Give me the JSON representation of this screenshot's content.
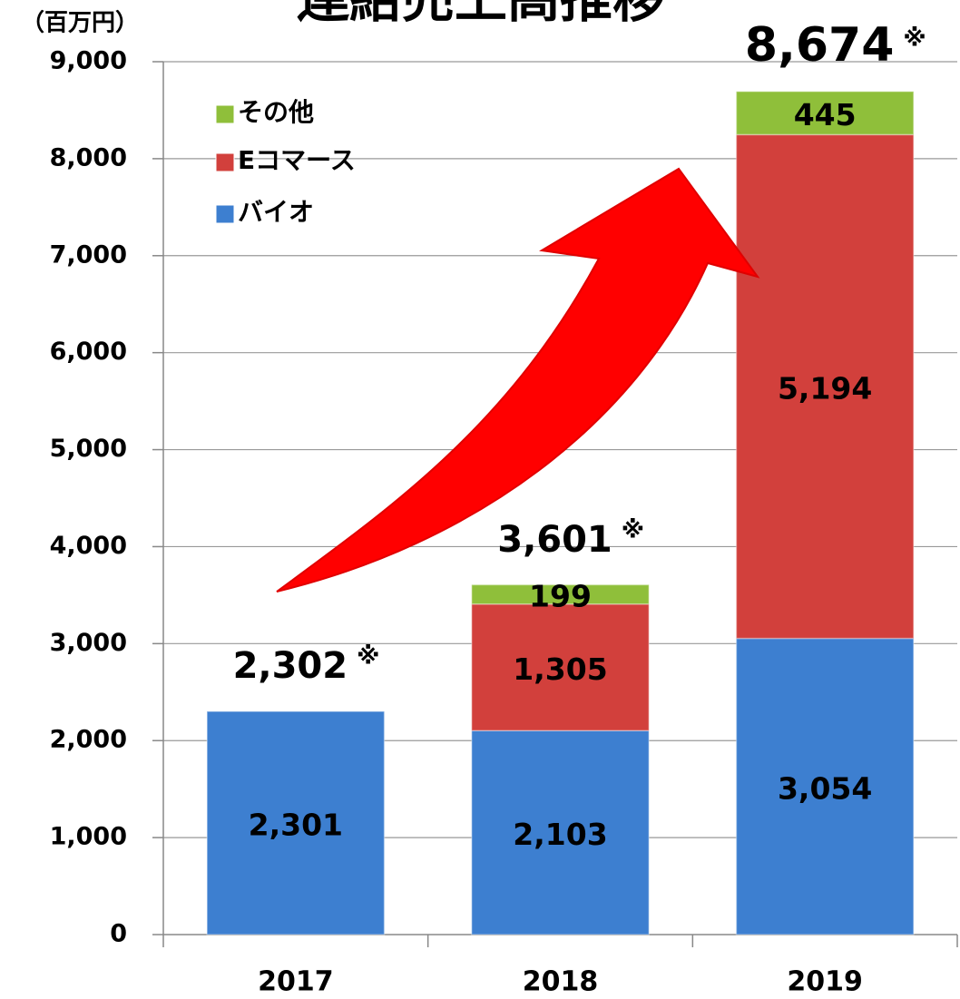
{
  "chart_data": {
    "type": "bar",
    "stacked": true,
    "title": "連結売上高推移",
    "y_axis_label": "（百万円）",
    "categories": [
      "2017",
      "2018",
      "2019"
    ],
    "series": [
      {
        "name": "バイオ",
        "color": "#3d7fd0",
        "values": [
          2301,
          2103,
          3054
        ],
        "value_labels": [
          "2,301",
          "2,103",
          "3,054"
        ]
      },
      {
        "name": "Eコマース",
        "color": "#d2403c",
        "values": [
          null,
          1305,
          5194
        ],
        "value_labels": [
          null,
          "1,305",
          "5,194"
        ]
      },
      {
        "name": "その他",
        "color": "#8fbf3a",
        "values": [
          null,
          199,
          445
        ],
        "value_labels": [
          null,
          "199",
          "445"
        ]
      }
    ],
    "totals": [
      2302,
      3601,
      8674
    ],
    "total_labels": [
      "2,302",
      "3,601",
      "8,674"
    ],
    "note_mark": "※",
    "ylim": [
      0,
      9000
    ],
    "yticks": [
      0,
      {
        "value": 1000,
        "label": "1,000"
      },
      {
        "value": 2000,
        "label": "2,000"
      },
      {
        "value": 3000,
        "label": "3,000"
      },
      {
        "value": 4000,
        "label": "4,000"
      },
      {
        "value": 5000,
        "label": "5,000"
      },
      {
        "value": 6000,
        "label": "6,000"
      },
      {
        "value": 7000,
        "label": "7,000"
      },
      {
        "value": 8000,
        "label": "8,000"
      },
      {
        "value": 9000,
        "label": "9,000"
      }
    ],
    "grid": true,
    "legend": "upper left"
  }
}
